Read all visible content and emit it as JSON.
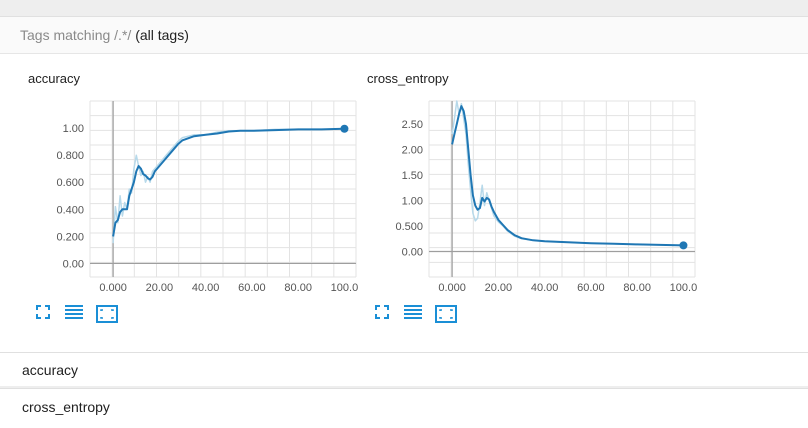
{
  "header": {
    "prefix": "Tags matching",
    "pattern": "/.*/",
    "suffix": "(all tags)"
  },
  "colors": {
    "series": "#1f77b4",
    "series_light": "#b7d9ea",
    "grid": "#e3e3e3",
    "axis": "#9e9e9e",
    "icon": "#1a8fd6"
  },
  "icons": [
    "fullscreen-icon",
    "list-icon",
    "fit-domain-icon"
  ],
  "chart_data": [
    {
      "type": "line",
      "title": "accuracy",
      "xlim": [
        -10,
        105
      ],
      "ylim": [
        -0.1,
        1.2
      ],
      "x_ticks": [
        "0.000",
        "20.00",
        "40.00",
        "60.00",
        "80.00",
        "100.0"
      ],
      "x_tick_values": [
        0,
        20,
        40,
        60,
        80,
        100
      ],
      "y_ticks": [
        "0.00",
        "0.200",
        "0.400",
        "0.600",
        "0.800",
        "1.00"
      ],
      "y_tick_values": [
        0,
        0.2,
        0.4,
        0.6,
        0.8,
        1.0
      ],
      "series": [
        {
          "role": "smoothed",
          "x": [
            0,
            1,
            2,
            3,
            4,
            5,
            6,
            7,
            8,
            9,
            10,
            11,
            12,
            13,
            14,
            15,
            16,
            17,
            18,
            20,
            22,
            24,
            26,
            28,
            30,
            35,
            40,
            45,
            50,
            55,
            60,
            70,
            80,
            90,
            100
          ],
          "y": [
            0.2,
            0.3,
            0.32,
            0.38,
            0.4,
            0.4,
            0.4,
            0.5,
            0.55,
            0.6,
            0.68,
            0.72,
            0.7,
            0.66,
            0.65,
            0.63,
            0.62,
            0.64,
            0.68,
            0.72,
            0.76,
            0.8,
            0.84,
            0.88,
            0.91,
            0.94,
            0.95,
            0.96,
            0.975,
            0.98,
            0.98,
            0.985,
            0.99,
            0.99,
            0.995
          ]
        },
        {
          "role": "raw",
          "x": [
            0,
            1,
            2,
            3,
            4,
            5,
            6,
            7,
            8,
            9,
            10,
            11,
            12,
            13,
            14,
            15,
            16,
            17,
            18,
            20,
            22,
            24,
            26,
            28,
            30,
            35,
            40,
            45,
            50,
            55,
            60,
            70,
            80,
            90,
            100
          ],
          "y": [
            0.15,
            0.42,
            0.3,
            0.5,
            0.35,
            0.45,
            0.4,
            0.55,
            0.52,
            0.7,
            0.8,
            0.72,
            0.65,
            0.68,
            0.6,
            0.64,
            0.6,
            0.68,
            0.7,
            0.74,
            0.78,
            0.82,
            0.86,
            0.9,
            0.93,
            0.95,
            0.95,
            0.97,
            0.98,
            0.98,
            0.98,
            0.99,
            0.99,
            0.99,
            0.995
          ]
        }
      ]
    },
    {
      "type": "line",
      "title": "cross_entropy",
      "xlim": [
        -10,
        105
      ],
      "ylim": [
        -0.5,
        2.95
      ],
      "x_ticks": [
        "0.000",
        "20.00",
        "40.00",
        "60.00",
        "80.00",
        "100.0"
      ],
      "x_tick_values": [
        0,
        20,
        40,
        60,
        80,
        100
      ],
      "y_ticks": [
        "0.00",
        "0.500",
        "1.00",
        "1.50",
        "2.00",
        "2.50"
      ],
      "y_tick_values": [
        0,
        0.5,
        1.0,
        1.5,
        2.0,
        2.5
      ],
      "series": [
        {
          "role": "smoothed",
          "x": [
            0,
            1,
            2,
            3,
            4,
            5,
            6,
            7,
            8,
            9,
            10,
            11,
            12,
            13,
            14,
            15,
            16,
            17,
            18,
            20,
            22,
            24,
            27,
            30,
            35,
            40,
            50,
            60,
            70,
            80,
            90,
            100
          ],
          "y": [
            2.1,
            2.3,
            2.5,
            2.7,
            2.85,
            2.75,
            2.5,
            2.0,
            1.5,
            1.1,
            0.9,
            0.82,
            0.85,
            1.05,
            0.98,
            1.05,
            1.02,
            0.88,
            0.78,
            0.62,
            0.52,
            0.42,
            0.32,
            0.26,
            0.22,
            0.2,
            0.18,
            0.16,
            0.15,
            0.14,
            0.13,
            0.12
          ]
        },
        {
          "role": "raw",
          "x": [
            0,
            1,
            2,
            3,
            4,
            5,
            6,
            7,
            8,
            9,
            10,
            11,
            12,
            13,
            14,
            15,
            16,
            17,
            18,
            20,
            22,
            24,
            27,
            30,
            35,
            40,
            50,
            60,
            70,
            80,
            90,
            100
          ],
          "y": [
            2.3,
            2.6,
            2.95,
            2.7,
            2.9,
            2.6,
            2.3,
            1.7,
            1.2,
            0.75,
            0.6,
            0.65,
            0.95,
            1.3,
            0.9,
            1.15,
            1.0,
            0.85,
            0.7,
            0.58,
            0.5,
            0.4,
            0.3,
            0.25,
            0.22,
            0.2,
            0.18,
            0.16,
            0.15,
            0.14,
            0.13,
            0.12
          ]
        }
      ]
    }
  ],
  "rows": {
    "accuracy": "accuracy",
    "cross_entropy": "cross_entropy"
  }
}
